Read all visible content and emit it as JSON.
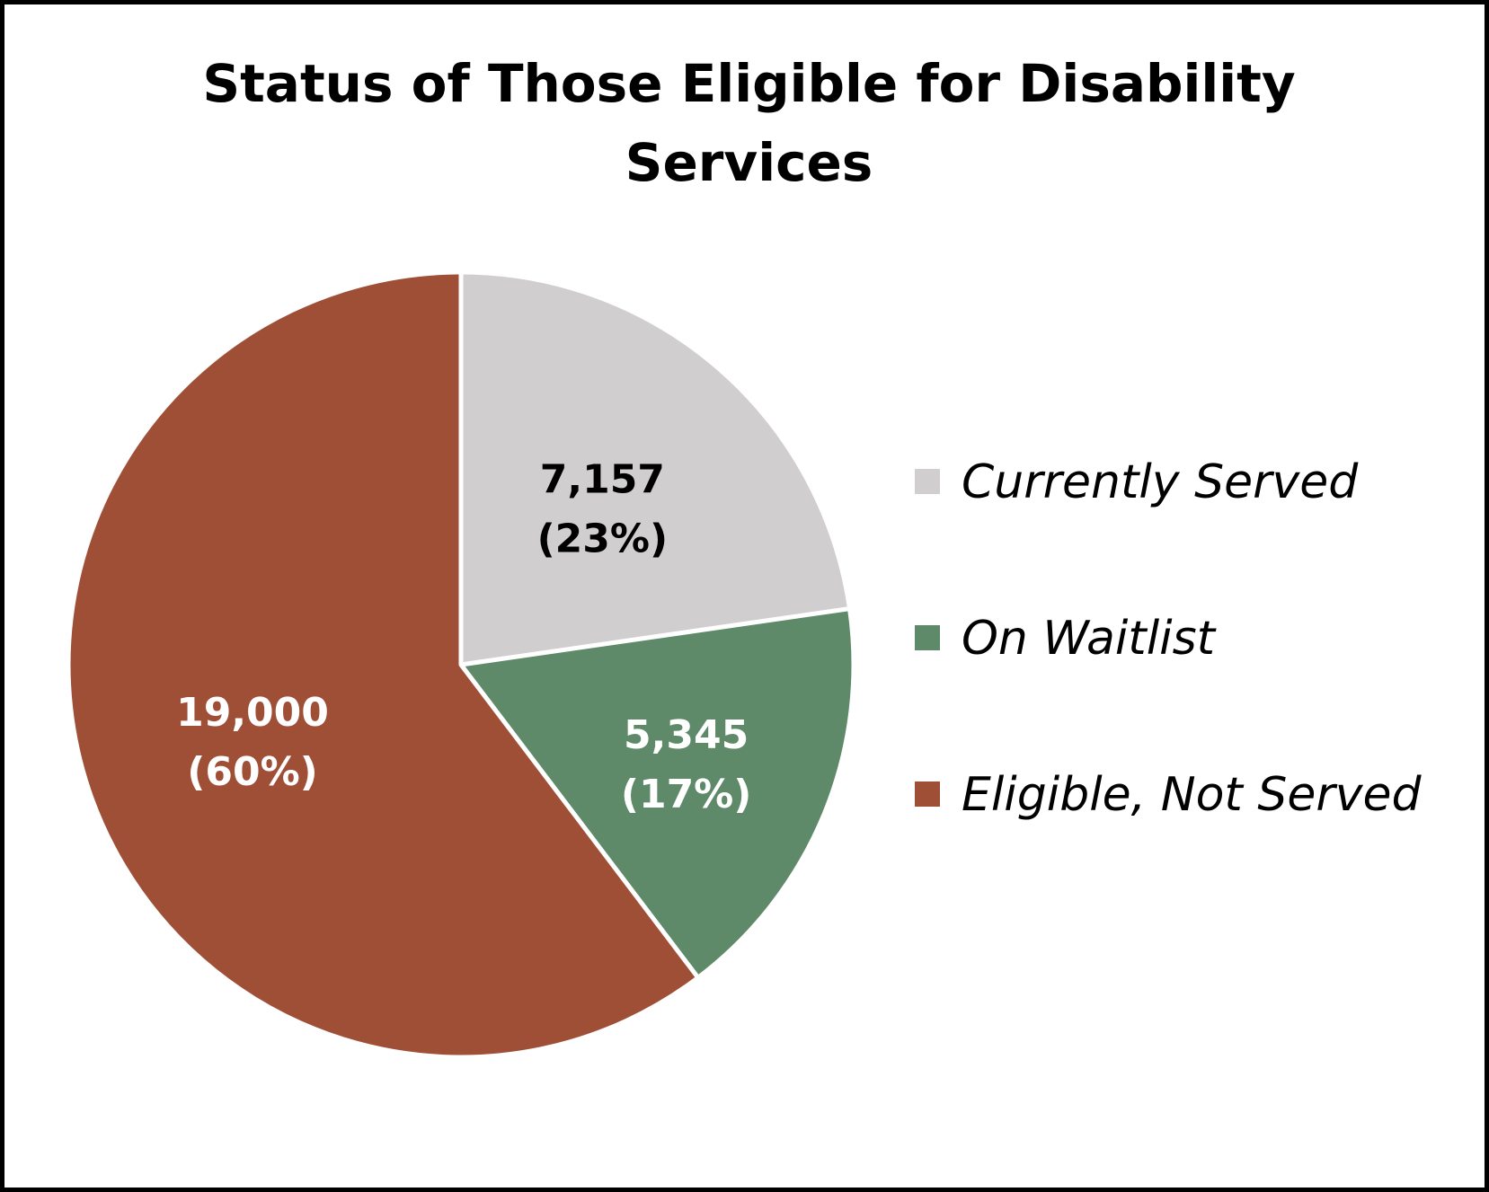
{
  "chart_data": {
    "type": "pie",
    "title": "Status of Those Eligible for Disability Services",
    "title_lines": [
      "Status of Those Eligible for Disability",
      "Services"
    ],
    "categories": [
      "Currently Served",
      "On Waitlist",
      "Eligible, Not Served"
    ],
    "values": [
      7157,
      5345,
      19000
    ],
    "value_labels": [
      "7,157",
      "5,345",
      "19,000"
    ],
    "percent_labels": [
      "(23%)",
      "(17%)",
      "(60%)"
    ],
    "colors": [
      "#D0CECE",
      "#5E8A69",
      "#A04F37"
    ],
    "label_colors": [
      "#000000",
      "#FFFFFF",
      "#FFFFFF"
    ],
    "start_angle": "12 o'clock",
    "direction": "clockwise",
    "legend_position": "right"
  }
}
